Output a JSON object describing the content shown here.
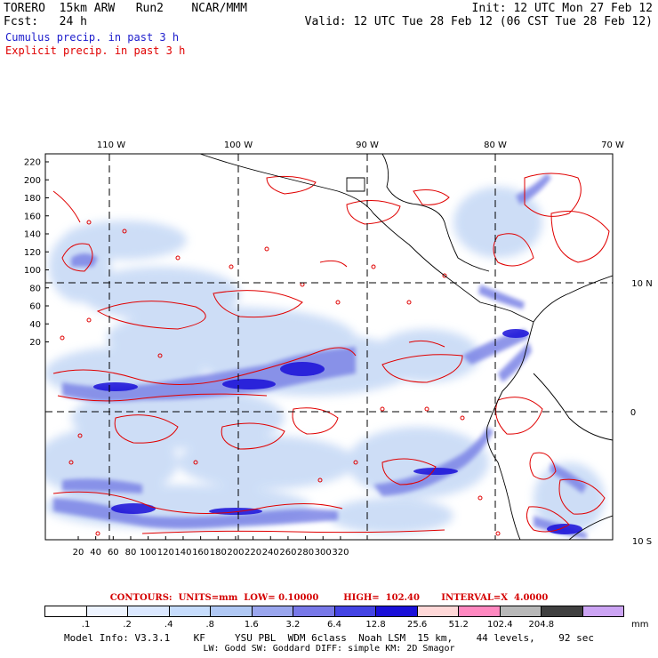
{
  "header": {
    "model": "TORERO  15km ARW   Run2    NCAR/MMM",
    "init": "Init: 12 UTC Mon 27 Feb 12",
    "fcst": "Fcst:   24 h",
    "valid": "Valid: 12 UTC Tue 28 Feb 12 (06 CST Tue 28 Feb 12)",
    "legend_cumulus": "Cumulus precip. in past 3 h",
    "legend_explicit": "Explicit precip. in past 3 h"
  },
  "colors": {
    "cumulus_text": "#1c1ccc",
    "explicit_text": "#e00000",
    "contour": "#e00000",
    "grid": "#000000"
  },
  "map": {
    "top_lon_labels": [
      "110 W",
      "100 W",
      "90 W",
      "80 W",
      "70 W"
    ],
    "right_lat_labels": [
      "10 N",
      "0",
      "10 S"
    ],
    "y_ticks": [
      "220",
      "200",
      "180",
      "160",
      "140",
      "120",
      "100",
      "80",
      "60",
      "40",
      "20"
    ],
    "x_ticks": [
      "20",
      "40",
      "60",
      "80",
      "100",
      "120",
      "140",
      "160",
      "180",
      "200",
      "220",
      "240",
      "260",
      "280",
      "300",
      "320"
    ]
  },
  "contour_info": "CONTOURS:  UNITS=mm  LOW= 0.10000        HIGH=  102.40       INTERVAL=X  4.0000",
  "colorbar": {
    "colors": [
      "#ffffff",
      "#eef4ff",
      "#dbe8ff",
      "#c6dcfc",
      "#b0c8f4",
      "#9aa6ee",
      "#7878e8",
      "#4444e4",
      "#1a10d8",
      "#ffd8d8",
      "#ff88c0",
      "#b8b8b8",
      "#404040",
      "#cca4f4"
    ],
    "labels": [
      ".1",
      ".2",
      ".4",
      ".8",
      "1.6",
      "3.2",
      "6.4",
      "12.8",
      "25.6",
      "51.2",
      "102.4",
      "204.8"
    ],
    "unit": "mm"
  },
  "footer": {
    "line1": "Model Info: V3.3.1    KF     YSU PBL  WDM 6class  Noah LSM  15 km,    44 levels,    92 sec",
    "line2": "LW: Godd SW: Goddard DIFF: simple KM: 2D Smagor"
  }
}
